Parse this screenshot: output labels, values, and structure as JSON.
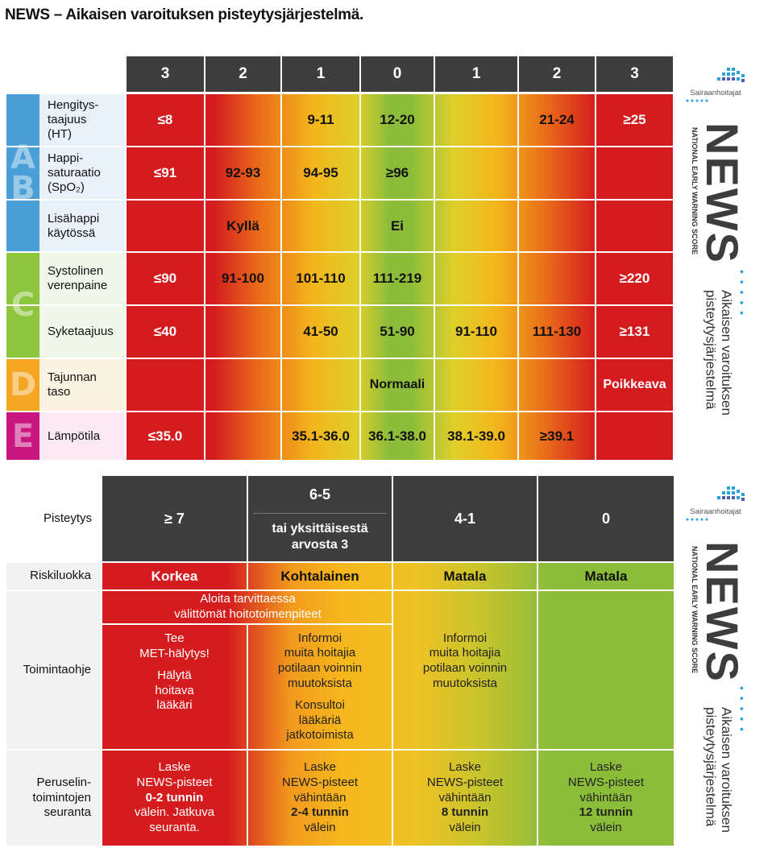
{
  "title": "NEWS – Aikaisen varoituksen pisteytysjärjestelmä.",
  "top_table": {
    "score_headers": [
      "3",
      "2",
      "1",
      "0",
      "1",
      "2",
      "3"
    ],
    "rows": [
      {
        "label": "Hengitys-\ntaajuus\n(HT)",
        "cells": [
          "≤8",
          "",
          "9-11",
          "12-20",
          "",
          "21-24",
          "≥25"
        ]
      },
      {
        "label": "Happi-\nsaturaatio\n(SpO₂)",
        "cells": [
          "≤91",
          "92-93",
          "94-95",
          "≥96",
          "",
          "",
          ""
        ]
      },
      {
        "label": "Lisähappi\nkäytössä",
        "cells": [
          "",
          "Kyllä",
          "",
          "Ei",
          "",
          "",
          ""
        ]
      },
      {
        "label": "Systolinen\nverenpaine",
        "cells": [
          "≤90",
          "91-100",
          "101-110",
          "111-219",
          "",
          "",
          "≥220"
        ]
      },
      {
        "label": "Syketaajuus",
        "cells": [
          "≤40",
          "",
          "41-50",
          "51-90",
          "91-110",
          "111-130",
          "≥131"
        ]
      },
      {
        "label": "Tajunnan\ntaso",
        "cells": [
          "",
          "",
          "",
          "Normaali",
          "",
          "",
          "Poikkeava"
        ]
      },
      {
        "label": "Lämpötila",
        "cells": [
          "≤35.0",
          "",
          "35.1-36.0",
          "36.1-38.0",
          "38.1-39.0",
          "≥39.1",
          ""
        ]
      }
    ],
    "letters": {
      "ab": [
        "A",
        "B"
      ],
      "c": "C",
      "d": "D",
      "e": "E"
    }
  },
  "bottom_table": {
    "pisteytys_label": "Pisteytys",
    "headers": {
      "c1": "≥ 7",
      "c2_top": "6-5",
      "c2_bottom": "tai yksittäisestä\narvosta 3",
      "c3": "4-1",
      "c4": "0"
    },
    "riskiluokka_label": "Riskiluokka",
    "risk": [
      "Korkea",
      "Kohtalainen",
      "Matala",
      "Matala"
    ],
    "toimintaohje_label": "Toimintaohje",
    "toimintaohje": {
      "span": "Aloita tarvittaessa\nvälittömät hoitotoimenpiteet",
      "c1a": "Tee\nMET-hälytys!",
      "c1b": "Hälytä\nhoitava\nlääkäri",
      "c2a": "Informoi\nmuita hoitajia\npotilaan voinnin\nmuutoksista",
      "c2b": "Konsultoi\nlääkäriä\njatkotoimista",
      "c3": "Informoi\nmuita hoitajia\npotilaan voinnin\nmuutoksista"
    },
    "seuranta_label": "Peruselin-\ntoimintojen\nseuranta",
    "seuranta": [
      {
        "pre": "Laske\nNEWS-pisteet",
        "bold": "0-2 tunnin",
        "post": "välein. Jatkuva\nseuranta."
      },
      {
        "pre": "Laske\nNEWS-pisteet\nvähintään",
        "bold": "2-4 tunnin",
        "post": "välein"
      },
      {
        "pre": "Laske\nNEWS-pisteet\nvähintään",
        "bold": "8 tunnin",
        "post": "välein"
      },
      {
        "pre": "Laske\nNEWS-pisteet\nvähintään",
        "bold": "12 tunnin",
        "post": "välein"
      }
    ]
  },
  "side": {
    "logo": "Sairaanhoitajat",
    "news": "NEWS",
    "subtitle": "NATIONAL EARLY WARNING SCORE",
    "finnish": "Aikaisen varoituksen\npisteytysjärjestelmä",
    "dots": "• • • • •"
  },
  "colors": {
    "red": "#d41c1f",
    "orange": "#f29a1e",
    "yellow": "#f3c21b",
    "green": "#8cbd3a",
    "header": "#3e3e3e",
    "blue": "#4a9fd6",
    "lime": "#8dc53e",
    "amber": "#f5a623",
    "magenta": "#c8177f"
  }
}
